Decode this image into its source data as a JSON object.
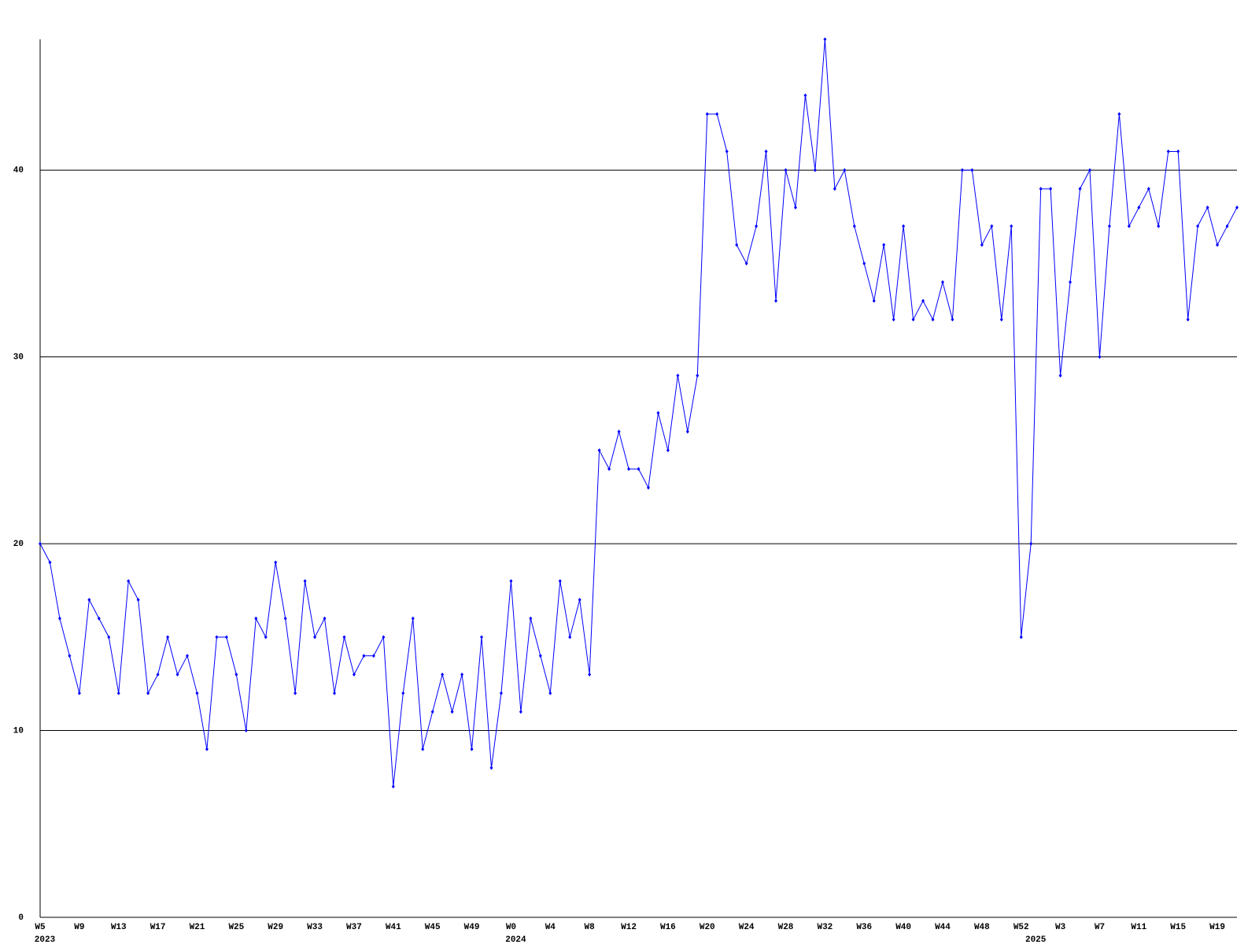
{
  "chart_data": {
    "type": "line",
    "categories": [
      "W5",
      null,
      null,
      null,
      "W9",
      null,
      null,
      null,
      "W13",
      null,
      null,
      null,
      "W17",
      null,
      null,
      null,
      "W21",
      null,
      null,
      null,
      "W25",
      null,
      null,
      null,
      "W29",
      null,
      null,
      null,
      "W33",
      null,
      null,
      null,
      "W37",
      null,
      null,
      null,
      "W41",
      null,
      null,
      null,
      "W45",
      null,
      null,
      null,
      "W49",
      null,
      null,
      null,
      "W0",
      null,
      null,
      null,
      "W4",
      null,
      null,
      null,
      "W8",
      null,
      null,
      null,
      "W12",
      null,
      null,
      null,
      "W16",
      null,
      null,
      null,
      "W20",
      null,
      null,
      null,
      "W24",
      null,
      null,
      null,
      "W28",
      null,
      null,
      null,
      "W32",
      null,
      null,
      null,
      "W36",
      null,
      null,
      null,
      "W40",
      null,
      null,
      null,
      "W44",
      null,
      null,
      null,
      "W48",
      null,
      null,
      null,
      "W52",
      null,
      null,
      null,
      "W3",
      null,
      null,
      null,
      "W7",
      null,
      null,
      null,
      "W11",
      null,
      null,
      null,
      "W15",
      null,
      null,
      null,
      "W19",
      null,
      null
    ],
    "category_years": [
      "2023",
      null,
      null,
      null,
      null,
      null,
      null,
      null,
      null,
      null,
      null,
      null,
      null,
      null,
      null,
      null,
      null,
      null,
      null,
      null,
      null,
      null,
      null,
      null,
      null,
      null,
      null,
      null,
      null,
      null,
      null,
      null,
      null,
      null,
      null,
      null,
      null,
      null,
      null,
      null,
      null,
      null,
      null,
      null,
      null,
      null,
      null,
      null,
      "2024",
      null,
      null,
      null,
      null,
      null,
      null,
      null,
      null,
      null,
      null,
      null,
      null,
      null,
      null,
      null,
      null,
      null,
      null,
      null,
      null,
      null,
      null,
      null,
      null,
      null,
      null,
      null,
      null,
      null,
      null,
      null,
      null,
      null,
      null,
      null,
      null,
      null,
      null,
      null,
      null,
      null,
      null,
      null,
      null,
      null,
      null,
      null,
      null,
      null,
      null,
      null,
      null,
      "2025",
      null,
      null,
      null,
      null,
      null,
      null,
      null,
      null,
      null,
      null,
      null,
      null,
      null,
      null,
      null,
      null,
      null,
      null,
      null,
      null,
      null
    ],
    "values": [
      20,
      19,
      16,
      14,
      12,
      17,
      16,
      15,
      12,
      18,
      17,
      12,
      13,
      15,
      13,
      14,
      12,
      9,
      15,
      15,
      13,
      10,
      16,
      15,
      19,
      16,
      12,
      18,
      15,
      16,
      12,
      15,
      13,
      14,
      14,
      15,
      7,
      12,
      16,
      9,
      11,
      13,
      11,
      13,
      9,
      15,
      8,
      12,
      18,
      11,
      16,
      14,
      12,
      18,
      15,
      17,
      13,
      25,
      24,
      26,
      24,
      24,
      23,
      27,
      25,
      29,
      26,
      29,
      43,
      43,
      41,
      36,
      35,
      37,
      41,
      33,
      40,
      38,
      44,
      40,
      47,
      39,
      40,
      37,
      35,
      33,
      36,
      32,
      37,
      32,
      33,
      32,
      34,
      32,
      40,
      40,
      36,
      37,
      32,
      37,
      15,
      20,
      39,
      39,
      29,
      34,
      39,
      40,
      30,
      37,
      43,
      37,
      38,
      39,
      37,
      41,
      41,
      32,
      37,
      38,
      36,
      37,
      38
    ],
    "color": "#0000ff",
    "ylim": [
      0,
      47
    ],
    "yticks": [
      0,
      10,
      20,
      30,
      40
    ],
    "grid": true
  }
}
